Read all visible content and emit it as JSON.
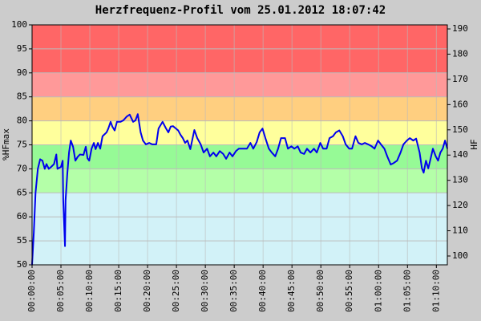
{
  "chart_data": {
    "type": "line",
    "title": "Herzfrequenz-Profil vom 25.01.2012 18:07:42",
    "ylabel": "%HFmax",
    "y2label": "HF",
    "xlim": [
      0,
      71.9
    ],
    "xticks": [
      {
        "value": 0,
        "label": "00:00:00"
      },
      {
        "value": 5,
        "label": "00:05:00"
      },
      {
        "value": 10,
        "label": "00:10:00"
      },
      {
        "value": 15,
        "label": "00:15:00"
      },
      {
        "value": 20,
        "label": "00:20:00"
      },
      {
        "value": 25,
        "label": "00:25:00"
      },
      {
        "value": 30,
        "label": "00:30:00"
      },
      {
        "value": 35,
        "label": "00:35:00"
      },
      {
        "value": 40,
        "label": "00:40:00"
      },
      {
        "value": 45,
        "label": "00:45:00"
      },
      {
        "value": 50,
        "label": "00:50:00"
      },
      {
        "value": 55,
        "label": "00:55:00"
      },
      {
        "value": 60,
        "label": "01:00:00"
      },
      {
        "value": 65,
        "label": "01:05:00"
      },
      {
        "value": 70,
        "label": "01:10:00"
      }
    ],
    "ylim": [
      50,
      100
    ],
    "yticks": [
      50,
      55,
      60,
      65,
      70,
      75,
      80,
      85,
      90,
      95,
      100
    ],
    "y2lim": [
      96.5,
      191.6
    ],
    "y2ticks": [
      100,
      110,
      120,
      130,
      140,
      150,
      160,
      170,
      180,
      190
    ],
    "grid": true,
    "zones": [
      {
        "from": 50,
        "to": 65,
        "color": "#d2f2f8"
      },
      {
        "from": 65,
        "to": 70,
        "color": "#b4ffa8"
      },
      {
        "from": 70,
        "to": 75,
        "color": "#96fa96"
      },
      {
        "from": 75,
        "to": 80,
        "color": "#ffff9c"
      },
      {
        "from": 80,
        "to": 85,
        "color": "#ffcf80"
      },
      {
        "from": 85,
        "to": 90,
        "color": "#ff9999"
      },
      {
        "from": 90,
        "to": 100,
        "color": "#ff6666"
      }
    ],
    "x": [
      0,
      0.3,
      0.6,
      1.0,
      1.4,
      1.8,
      2.2,
      2.5,
      2.9,
      3.3,
      3.8,
      4.2,
      4.4,
      5.0,
      5.3,
      5.4,
      5.7,
      5.8,
      6.1,
      6.4,
      6.7,
      7.1,
      7.5,
      7.9,
      8.3,
      8.9,
      9.3,
      9.6,
      9.9,
      10.3,
      10.7,
      11.0,
      11.4,
      11.8,
      12.2,
      12.9,
      13.2,
      13.6,
      13.9,
      14.3,
      14.7,
      15.3,
      15.8,
      16.4,
      16.9,
      17.5,
      17.9,
      18.3,
      18.8,
      19.2,
      19.7,
      20.3,
      20.8,
      21.5,
      21.9,
      22.6,
      23.2,
      23.6,
      24.0,
      24.4,
      24.9,
      25.3,
      25.7,
      26.1,
      26.5,
      26.9,
      27.4,
      28.1,
      28.6,
      29.2,
      29.7,
      30.3,
      30.8,
      31.4,
      31.9,
      32.5,
      33.1,
      33.6,
      34.2,
      34.7,
      35.3,
      35.8,
      36.5,
      37.2,
      37.8,
      38.3,
      38.9,
      39.4,
      39.9,
      40.4,
      41.0,
      41.5,
      42.1,
      42.6,
      43.1,
      43.8,
      44.3,
      44.9,
      45.4,
      46.0,
      46.5,
      47.1,
      47.6,
      48.2,
      48.8,
      49.3,
      49.9,
      50.4,
      51.0,
      51.5,
      52.1,
      52.6,
      53.2,
      53.8,
      54.3,
      54.9,
      55.4,
      56.0,
      56.5,
      57.1,
      57.6,
      58.2,
      58.8,
      59.3,
      59.9,
      60.4,
      61.0,
      61.5,
      62.1,
      62.6,
      63.2,
      63.8,
      64.3,
      64.9,
      65.4,
      66.0,
      66.5,
      67.1,
      67.5,
      67.8,
      68.2,
      68.6,
      69.0,
      69.4,
      69.9,
      70.3,
      70.7,
      71.1,
      71.5,
      71.9
    ],
    "series": [
      {
        "color": "#0000ee",
        "values": [
          50,
          56.7,
          65,
          70,
          72,
          71.7,
          70,
          71,
          70,
          70.4,
          71,
          73,
          70,
          70.4,
          71.7,
          63.4,
          53.9,
          63.4,
          69,
          73.4,
          75.9,
          74.6,
          71.7,
          72.5,
          73,
          72.9,
          74.6,
          72.2,
          71.7,
          74.2,
          75.4,
          74.1,
          75.4,
          74.2,
          76.8,
          77.6,
          78.4,
          79.8,
          78.8,
          78,
          79.8,
          79.8,
          80.1,
          80.9,
          81.3,
          79.8,
          80.1,
          81.4,
          77.6,
          75.9,
          75.1,
          75.4,
          75.1,
          75.1,
          78.4,
          79.8,
          78.4,
          77.6,
          78.8,
          78.9,
          78.4,
          78,
          77.1,
          76.4,
          75.4,
          75.9,
          74.1,
          78.1,
          76.4,
          75.1,
          73.4,
          74.2,
          72.6,
          73.4,
          72.6,
          73.7,
          73.1,
          72.1,
          73.4,
          72.6,
          73.7,
          74.2,
          74.2,
          74.2,
          75.4,
          74.2,
          75.6,
          77.6,
          78.4,
          76.4,
          74.2,
          73.4,
          72.6,
          74.2,
          76.4,
          76.4,
          74.2,
          74.7,
          74.2,
          74.7,
          73.4,
          73.1,
          74.2,
          73.4,
          74.2,
          73.4,
          75.4,
          74.2,
          74.2,
          76.4,
          76.8,
          77.6,
          78,
          76.8,
          75.1,
          74.2,
          74.2,
          76.8,
          75.4,
          75.1,
          75.4,
          75.1,
          74.7,
          74.2,
          75.9,
          75.1,
          74.2,
          72.6,
          70.9,
          71.2,
          71.7,
          73.4,
          75.1,
          75.9,
          76.4,
          75.9,
          76.3,
          73.4,
          70.1,
          69.2,
          71.7,
          70.1,
          72.1,
          74.2,
          72.6,
          71.7,
          73.4,
          74.2,
          75.9,
          74.2
        ]
      }
    ]
  }
}
